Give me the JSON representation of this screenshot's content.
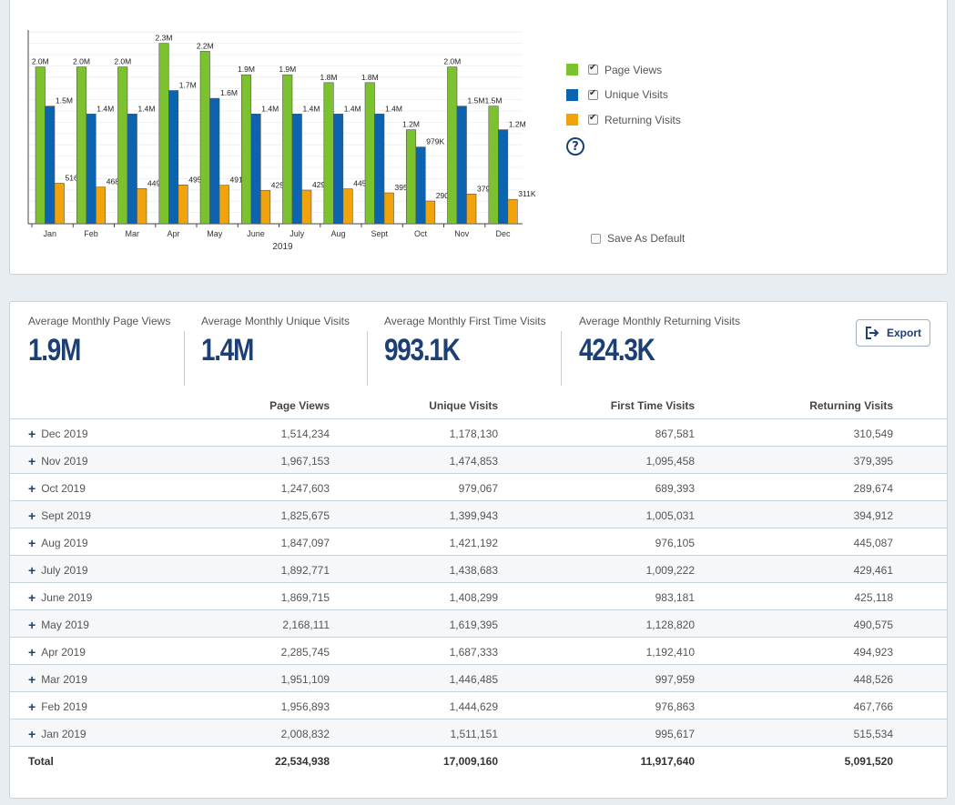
{
  "chart_data": {
    "type": "bar",
    "xlabel": "2019",
    "categories": [
      "Jan",
      "Feb",
      "Mar",
      "Apr",
      "May",
      "June",
      "July",
      "Aug",
      "Sept",
      "Oct",
      "Nov",
      "Dec"
    ],
    "series": [
      {
        "name": "Page Views",
        "color": "#7cc22f",
        "values": [
          2.0,
          2.0,
          2.0,
          2.3,
          2.2,
          1.9,
          1.9,
          1.8,
          1.8,
          1.2,
          2.0,
          1.5
        ],
        "labels": [
          "2.0M",
          "2.0M",
          "2.0M",
          "2.3M",
          "2.2M",
          "1.9M",
          "1.9M",
          "1.8M",
          "1.8M",
          "1.2M",
          "2.0M",
          "1.5M"
        ]
      },
      {
        "name": "Unique Visits",
        "color": "#0c64b0",
        "values": [
          1.5,
          1.4,
          1.4,
          1.7,
          1.6,
          1.4,
          1.4,
          1.4,
          1.4,
          0.979,
          1.5,
          1.2
        ],
        "labels": [
          "1.5M",
          "1.4M",
          "1.4M",
          "1.7M",
          "1.6M",
          "1.4M",
          "1.4M",
          "1.4M",
          "1.4M",
          "979K",
          "1.5M",
          "1.2M"
        ]
      },
      {
        "name": "Returning Visits",
        "color": "#f0a30a",
        "values": [
          0.516,
          0.468,
          0.449,
          0.495,
          0.491,
          0.425,
          0.429,
          0.445,
          0.395,
          0.29,
          0.379,
          0.311
        ],
        "labels": [
          "516K",
          "468K",
          "449K",
          "495K",
          "491K",
          "425K",
          "429K",
          "445K",
          "395K",
          "290K",
          "379K",
          "311K"
        ]
      }
    ],
    "ylim": [
      0,
      2.4
    ],
    "grid": true
  },
  "legend": {
    "items": [
      {
        "label": "Page Views",
        "color": "#7cc22f"
      },
      {
        "label": "Unique Visits",
        "color": "#0c64b0"
      },
      {
        "label": "Returning Visits",
        "color": "#f0a30a"
      }
    ],
    "help_icon": "?",
    "save_default_label": "Save As Default"
  },
  "stats": [
    {
      "label": "Average Monthly Page Views",
      "value": "1.9M"
    },
    {
      "label": "Average Monthly Unique Visits",
      "value": "1.4M"
    },
    {
      "label": "Average Monthly First Time Visits",
      "value": "993.1K"
    },
    {
      "label": "Average Monthly Returning Visits",
      "value": "424.3K"
    }
  ],
  "export_label": "Export",
  "table": {
    "headers": [
      "Page Views",
      "Unique Visits",
      "First Time Visits",
      "Returning Visits"
    ],
    "rows": [
      {
        "month": "Dec 2019",
        "pv": "1,514,234",
        "uv": "1,178,130",
        "ft": "867,581",
        "rv": "310,549"
      },
      {
        "month": "Nov 2019",
        "pv": "1,967,153",
        "uv": "1,474,853",
        "ft": "1,095,458",
        "rv": "379,395"
      },
      {
        "month": "Oct 2019",
        "pv": "1,247,603",
        "uv": "979,067",
        "ft": "689,393",
        "rv": "289,674"
      },
      {
        "month": "Sept 2019",
        "pv": "1,825,675",
        "uv": "1,399,943",
        "ft": "1,005,031",
        "rv": "394,912"
      },
      {
        "month": "Aug 2019",
        "pv": "1,847,097",
        "uv": "1,421,192",
        "ft": "976,105",
        "rv": "445,087"
      },
      {
        "month": "July 2019",
        "pv": "1,892,771",
        "uv": "1,438,683",
        "ft": "1,009,222",
        "rv": "429,461"
      },
      {
        "month": "June 2019",
        "pv": "1,869,715",
        "uv": "1,408,299",
        "ft": "983,181",
        "rv": "425,118"
      },
      {
        "month": "May 2019",
        "pv": "2,168,111",
        "uv": "1,619,395",
        "ft": "1,128,820",
        "rv": "490,575"
      },
      {
        "month": "Apr 2019",
        "pv": "2,285,745",
        "uv": "1,687,333",
        "ft": "1,192,410",
        "rv": "494,923"
      },
      {
        "month": "Mar 2019",
        "pv": "1,951,109",
        "uv": "1,446,485",
        "ft": "997,959",
        "rv": "448,526"
      },
      {
        "month": "Feb 2019",
        "pv": "1,956,893",
        "uv": "1,444,629",
        "ft": "976,863",
        "rv": "467,766"
      },
      {
        "month": "Jan 2019",
        "pv": "2,008,832",
        "uv": "1,511,151",
        "ft": "995,617",
        "rv": "515,534"
      }
    ],
    "total": {
      "month": "Total",
      "pv": "22,534,938",
      "uv": "17,009,160",
      "ft": "11,917,640",
      "rv": "5,091,520"
    }
  }
}
